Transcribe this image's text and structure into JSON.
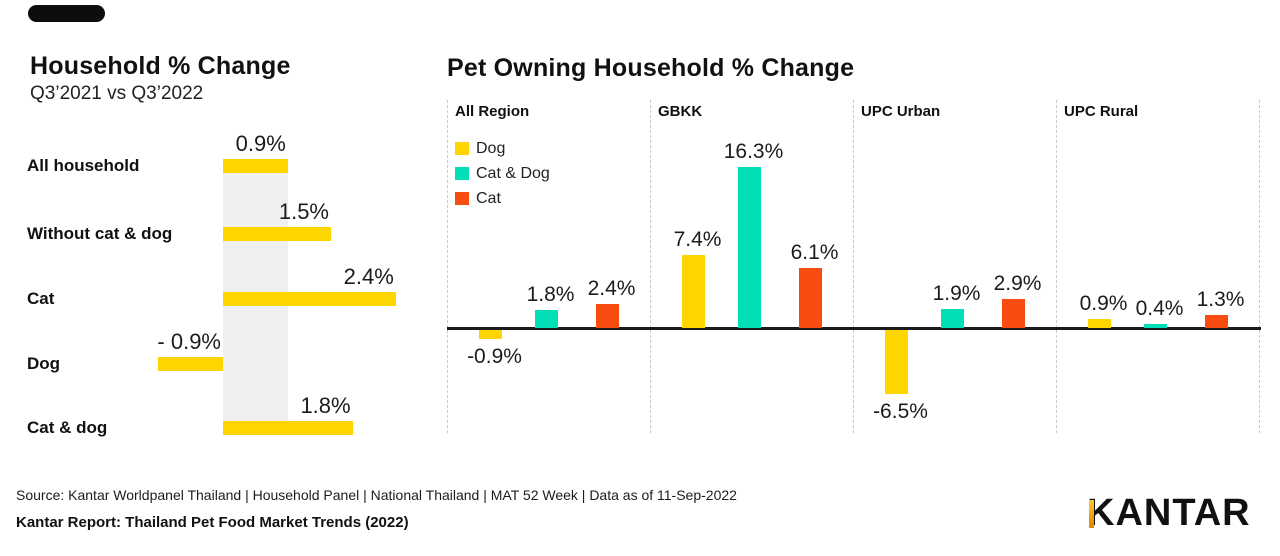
{
  "colors": {
    "dog_yellow": "#FFD500",
    "cat_and_dog_teal": "#00DFB8",
    "cat_orange": "#F94C10",
    "reference_band_gray": "#EFEFEF",
    "separator_gray": "#C9C9C9",
    "axis_black": "#1A1A1A",
    "masked_logo_black": "#0D0D0D",
    "logo_gold_top": "#FFC72C",
    "logo_gold_bottom": "#DD8500"
  },
  "chart_data": [
    {
      "type": "bar",
      "orientation": "horizontal",
      "title": "Household % Change",
      "subtitle": "Q3’2021 vs Q3’2022",
      "categories": [
        "All household",
        "Without cat & dog",
        "Cat",
        "Dog",
        "Cat & dog"
      ],
      "values": [
        0.9,
        1.5,
        2.4,
        -0.9,
        1.8
      ],
      "data_labels": [
        "0.9%",
        "1.5%",
        "2.4%",
        "- 0.9%",
        "1.8%"
      ],
      "bar_color": "#FFD500",
      "reference_band": {
        "represents": "All household 0.9%",
        "color": "#EFEFEF"
      },
      "xlim": [
        -1,
        2.5
      ],
      "grid": false,
      "legend": null
    },
    {
      "type": "bar",
      "orientation": "vertical",
      "title": "Pet Owning Household % Change",
      "groups": [
        "All Region",
        "GBKK",
        "UPC Urban",
        "UPC Rural"
      ],
      "series": [
        {
          "name": "Dog",
          "color": "#FFD500",
          "values": [
            -0.9,
            7.4,
            -6.5,
            0.9
          ],
          "data_labels": [
            "-0.9%",
            "7.4%",
            "-6.5%",
            "0.9%"
          ]
        },
        {
          "name": "Cat & Dog",
          "color": "#00DFB8",
          "values": [
            1.8,
            16.3,
            1.9,
            0.4
          ],
          "data_labels": [
            "1.8%",
            "16.3%",
            "1.9%",
            "0.4%"
          ]
        },
        {
          "name": "Cat",
          "color": "#F94C10",
          "values": [
            2.4,
            6.1,
            2.9,
            1.3
          ],
          "data_labels": [
            "2.4%",
            "6.1%",
            "2.9%",
            "1.3%"
          ]
        }
      ],
      "legend": {
        "position": "top-left-of-first-panel",
        "entries": [
          "Dog",
          "Cat & Dog",
          "Cat"
        ]
      },
      "baseline": 0,
      "ylim": [
        -7,
        17
      ],
      "grid": false
    }
  ],
  "footer": {
    "source": "Source: Kantar Worldpanel Thailand | Household Panel | National Thailand | MAT 52 Week | Data as of 11-Sep-2022",
    "report": "Kantar Report: Thailand Pet Food Market Trends (2022)",
    "logo_text": "KANTAR"
  }
}
